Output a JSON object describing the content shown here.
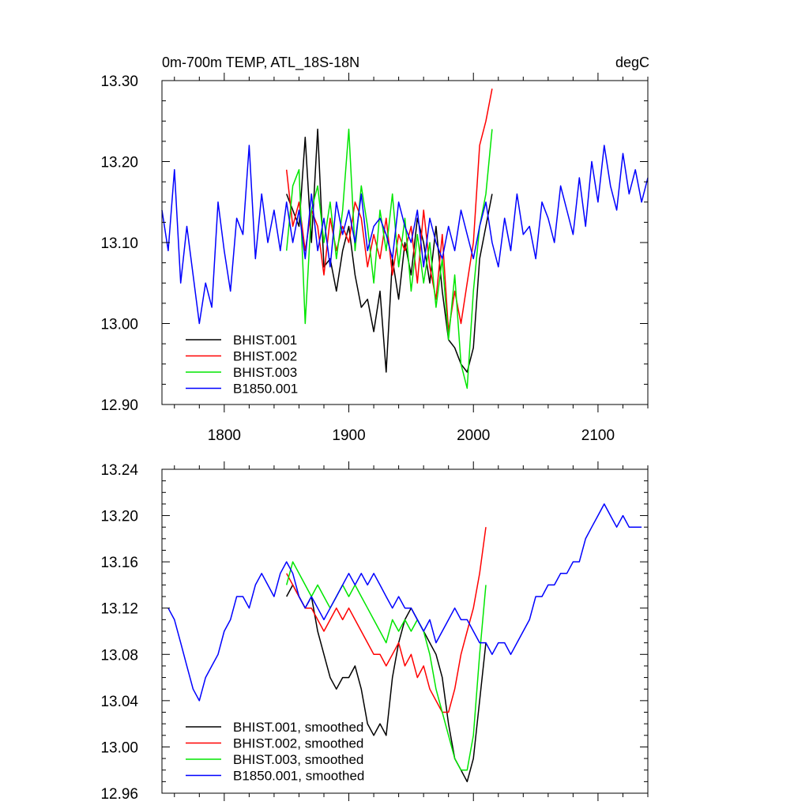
{
  "chart_data": [
    {
      "type": "line",
      "title": "0m-700m TEMP, ATL_18S-18N",
      "units": "degC",
      "xlim": [
        1750,
        2140
      ],
      "ylim": [
        12.9,
        13.3
      ],
      "x_ticks": [
        1800,
        1900,
        2000,
        2100
      ],
      "x_tick_labels": [
        "1800",
        "1900",
        "2000",
        "2100"
      ],
      "y_ticks": [
        12.9,
        13.0,
        13.1,
        13.2,
        13.3
      ],
      "y_tick_labels": [
        "12.90",
        "13.00",
        "13.10",
        "13.20",
        "13.30"
      ],
      "grid": false,
      "legend_position": "bottom-left",
      "series": [
        {
          "name": "BHIST.001",
          "color": "#000000",
          "x": [
            1850,
            1855,
            1860,
            1865,
            1870,
            1875,
            1880,
            1885,
            1890,
            1895,
            1900,
            1905,
            1910,
            1915,
            1920,
            1925,
            1930,
            1935,
            1940,
            1945,
            1950,
            1955,
            1960,
            1965,
            1970,
            1975,
            1980,
            1985,
            1990,
            1995,
            2000,
            2005,
            2010,
            2015
          ],
          "y": [
            13.16,
            13.14,
            13.12,
            13.23,
            13.1,
            13.24,
            13.07,
            13.08,
            13.04,
            13.09,
            13.12,
            13.06,
            13.02,
            13.03,
            12.99,
            13.04,
            12.94,
            13.08,
            13.03,
            13.1,
            13.06,
            13.13,
            13.1,
            13.05,
            13.12,
            13.04,
            12.98,
            12.97,
            12.95,
            12.94,
            12.97,
            13.08,
            13.12,
            13.16
          ]
        },
        {
          "name": "BHIST.002",
          "color": "#ff0000",
          "x": [
            1850,
            1855,
            1860,
            1865,
            1870,
            1875,
            1880,
            1885,
            1890,
            1895,
            1900,
            1905,
            1910,
            1915,
            1920,
            1925,
            1930,
            1935,
            1940,
            1945,
            1950,
            1955,
            1960,
            1965,
            1970,
            1975,
            1980,
            1985,
            1990,
            1995,
            2000,
            2005,
            2010,
            2015
          ],
          "y": [
            13.19,
            13.12,
            13.15,
            13.09,
            13.14,
            13.12,
            13.06,
            13.13,
            13.09,
            13.12,
            13.1,
            13.15,
            13.13,
            13.07,
            13.11,
            13.08,
            13.13,
            13.06,
            13.11,
            13.09,
            13.12,
            13.05,
            13.14,
            13.07,
            13.03,
            13.11,
            12.99,
            13.04,
            13.0,
            13.05,
            13.1,
            13.22,
            13.25,
            13.29
          ]
        },
        {
          "name": "BHIST.003",
          "color": "#00e600",
          "x": [
            1850,
            1855,
            1860,
            1865,
            1870,
            1875,
            1880,
            1885,
            1890,
            1895,
            1900,
            1905,
            1910,
            1915,
            1920,
            1925,
            1930,
            1935,
            1940,
            1945,
            1950,
            1955,
            1960,
            1965,
            1970,
            1975,
            1980,
            1985,
            1990,
            1995,
            2000,
            2005,
            2010,
            2015
          ],
          "y": [
            13.09,
            13.17,
            13.19,
            13.0,
            13.14,
            13.17,
            13.1,
            13.15,
            13.08,
            13.14,
            13.24,
            13.09,
            13.17,
            13.12,
            13.05,
            13.14,
            13.09,
            13.16,
            13.07,
            13.13,
            13.04,
            13.11,
            13.05,
            13.1,
            13.02,
            13.08,
            12.98,
            13.06,
            12.95,
            12.92,
            13.04,
            13.12,
            13.16,
            13.24
          ]
        },
        {
          "name": "B1850.001",
          "color": "#0000ff",
          "x": [
            1750,
            1755,
            1760,
            1765,
            1770,
            1775,
            1780,
            1785,
            1790,
            1795,
            1800,
            1805,
            1810,
            1815,
            1820,
            1825,
            1830,
            1835,
            1840,
            1845,
            1850,
            1855,
            1860,
            1865,
            1870,
            1875,
            1880,
            1885,
            1890,
            1895,
            1900,
            1905,
            1910,
            1915,
            1920,
            1925,
            1930,
            1935,
            1940,
            1945,
            1950,
            1955,
            1960,
            1965,
            1970,
            1975,
            1980,
            1985,
            1990,
            1995,
            2000,
            2005,
            2010,
            2015,
            2020,
            2025,
            2030,
            2035,
            2040,
            2045,
            2050,
            2055,
            2060,
            2065,
            2070,
            2075,
            2080,
            2085,
            2090,
            2095,
            2100,
            2105,
            2110,
            2115,
            2120,
            2125,
            2130,
            2135,
            2140
          ],
          "y": [
            13.14,
            13.09,
            13.19,
            13.05,
            13.12,
            13.06,
            13.0,
            13.05,
            13.02,
            13.15,
            13.09,
            13.04,
            13.13,
            13.11,
            13.22,
            13.08,
            13.16,
            13.1,
            13.14,
            13.09,
            13.15,
            13.1,
            13.14,
            13.08,
            13.16,
            13.09,
            13.13,
            13.07,
            13.15,
            13.11,
            13.14,
            13.1,
            13.16,
            13.09,
            13.12,
            13.13,
            13.11,
            13.08,
            13.15,
            13.12,
            13.1,
            13.14,
            13.07,
            13.13,
            13.1,
            13.08,
            13.12,
            13.09,
            13.14,
            13.11,
            13.08,
            13.12,
            13.15,
            13.1,
            13.07,
            13.13,
            13.09,
            13.16,
            13.11,
            13.12,
            13.08,
            13.15,
            13.13,
            13.1,
            13.17,
            13.14,
            13.11,
            13.18,
            13.12,
            13.2,
            13.15,
            13.22,
            13.17,
            13.14,
            13.21,
            13.16,
            13.19,
            13.15,
            13.18
          ]
        }
      ]
    },
    {
      "type": "line",
      "title": "",
      "xlim": [
        1750,
        2140
      ],
      "ylim": [
        12.96,
        13.24
      ],
      "x_ticks": [
        1800,
        1900,
        2000,
        2100
      ],
      "x_tick_labels": [],
      "y_ticks": [
        12.96,
        13.0,
        13.04,
        13.08,
        13.12,
        13.16,
        13.2,
        13.24
      ],
      "y_tick_labels": [
        "12.96",
        "13.00",
        "13.04",
        "13.08",
        "13.12",
        "13.16",
        "13.20",
        "13.24"
      ],
      "grid": false,
      "legend_position": "bottom-left",
      "series": [
        {
          "name": "BHIST.001, smoothed",
          "color": "#000000",
          "x": [
            1850,
            1855,
            1860,
            1865,
            1870,
            1875,
            1880,
            1885,
            1890,
            1895,
            1900,
            1905,
            1910,
            1915,
            1920,
            1925,
            1930,
            1935,
            1940,
            1945,
            1950,
            1955,
            1960,
            1965,
            1970,
            1975,
            1980,
            1985,
            1990,
            1995,
            2000,
            2005,
            2010
          ],
          "y": [
            13.13,
            13.14,
            13.13,
            13.12,
            13.13,
            13.1,
            13.08,
            13.06,
            13.05,
            13.06,
            13.06,
            13.07,
            13.05,
            13.02,
            13.01,
            13.02,
            13.01,
            13.06,
            13.09,
            13.11,
            13.12,
            13.11,
            13.1,
            13.09,
            13.08,
            13.06,
            13.02,
            12.99,
            12.98,
            12.97,
            12.99,
            13.04,
            13.09
          ]
        },
        {
          "name": "BHIST.002, smoothed",
          "color": "#ff0000",
          "x": [
            1850,
            1855,
            1860,
            1865,
            1870,
            1875,
            1880,
            1885,
            1890,
            1895,
            1900,
            1905,
            1910,
            1915,
            1920,
            1925,
            1930,
            1935,
            1940,
            1945,
            1950,
            1955,
            1960,
            1965,
            1970,
            1975,
            1980,
            1985,
            1990,
            1995,
            2000,
            2005,
            2010
          ],
          "y": [
            13.15,
            13.14,
            13.13,
            13.12,
            13.12,
            13.11,
            13.1,
            13.11,
            13.12,
            13.11,
            13.12,
            13.11,
            13.1,
            13.09,
            13.08,
            13.08,
            13.07,
            13.08,
            13.09,
            13.07,
            13.08,
            13.06,
            13.07,
            13.05,
            13.04,
            13.03,
            13.03,
            13.05,
            13.08,
            13.1,
            13.12,
            13.15,
            13.19
          ]
        },
        {
          "name": "BHIST.003, smoothed",
          "color": "#00e600",
          "x": [
            1850,
            1855,
            1860,
            1865,
            1870,
            1875,
            1880,
            1885,
            1890,
            1895,
            1900,
            1905,
            1910,
            1915,
            1920,
            1925,
            1930,
            1935,
            1940,
            1945,
            1950,
            1955,
            1960,
            1965,
            1970,
            1975,
            1980,
            1985,
            1990,
            1995,
            2000,
            2005,
            2010
          ],
          "y": [
            13.14,
            13.16,
            13.15,
            13.14,
            13.13,
            13.14,
            13.13,
            13.12,
            13.13,
            13.14,
            13.13,
            13.14,
            13.13,
            13.12,
            13.11,
            13.1,
            13.09,
            13.11,
            13.1,
            13.11,
            13.1,
            13.11,
            13.1,
            13.08,
            13.05,
            13.03,
            13.01,
            12.99,
            12.98,
            12.98,
            13.01,
            13.08,
            13.14
          ]
        },
        {
          "name": "B1850.001, smoothed",
          "color": "#0000ff",
          "x": [
            1755,
            1760,
            1765,
            1770,
            1775,
            1780,
            1785,
            1790,
            1795,
            1800,
            1805,
            1810,
            1815,
            1820,
            1825,
            1830,
            1835,
            1840,
            1845,
            1850,
            1855,
            1860,
            1865,
            1870,
            1875,
            1880,
            1885,
            1890,
            1895,
            1900,
            1905,
            1910,
            1915,
            1920,
            1925,
            1930,
            1935,
            1940,
            1945,
            1950,
            1955,
            1960,
            1965,
            1970,
            1975,
            1980,
            1985,
            1990,
            1995,
            2000,
            2005,
            2010,
            2015,
            2020,
            2025,
            2030,
            2035,
            2040,
            2045,
            2050,
            2055,
            2060,
            2065,
            2070,
            2075,
            2080,
            2085,
            2090,
            2095,
            2100,
            2105,
            2110,
            2115,
            2120,
            2125,
            2130,
            2135
          ],
          "y": [
            13.12,
            13.11,
            13.09,
            13.07,
            13.05,
            13.04,
            13.06,
            13.07,
            13.08,
            13.1,
            13.11,
            13.13,
            13.13,
            13.12,
            13.14,
            13.15,
            13.14,
            13.13,
            13.15,
            13.16,
            13.15,
            13.13,
            13.12,
            13.13,
            13.12,
            13.11,
            13.12,
            13.13,
            13.14,
            13.15,
            13.14,
            13.15,
            13.14,
            13.15,
            13.14,
            13.13,
            13.12,
            13.13,
            13.12,
            13.12,
            13.11,
            13.1,
            13.11,
            13.09,
            13.1,
            13.11,
            13.12,
            13.11,
            13.11,
            13.1,
            13.09,
            13.09,
            13.08,
            13.09,
            13.09,
            13.08,
            13.09,
            13.1,
            13.11,
            13.13,
            13.13,
            13.14,
            13.14,
            13.15,
            13.15,
            13.16,
            13.16,
            13.18,
            13.19,
            13.2,
            13.21,
            13.2,
            13.19,
            13.2,
            13.19,
            13.19,
            13.19
          ]
        }
      ]
    }
  ]
}
